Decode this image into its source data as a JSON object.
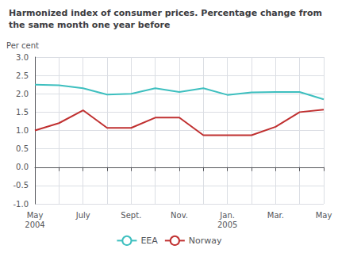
{
  "chart_data": {
    "type": "line",
    "title": "Harmonized index of consumer prices. Percentage change from\nthe same month one year before",
    "y_label": "Per cent",
    "categories": [
      "May\n2004",
      null,
      "July",
      null,
      "Sept.",
      null,
      "Nov.",
      null,
      "Jan.\n2005",
      null,
      "Mar.",
      null,
      "May"
    ],
    "series": [
      {
        "name": "EEA",
        "color": "#3dbfbf",
        "values": [
          2.25,
          2.23,
          2.15,
          1.98,
          2.0,
          2.15,
          2.05,
          2.15,
          1.97,
          2.04,
          2.05,
          2.05,
          1.85
        ]
      },
      {
        "name": "Norway",
        "color": "#c03030",
        "values": [
          1.0,
          1.2,
          1.55,
          1.07,
          1.07,
          1.35,
          1.35,
          0.87,
          0.87,
          0.87,
          1.1,
          1.5,
          1.57
        ]
      }
    ],
    "ylim": [
      -1.0,
      3.0
    ],
    "yticks": [
      {
        "value": -1.0,
        "label": "-1.0"
      },
      {
        "value": -0.5,
        "label": "-0.5"
      },
      {
        "value": 0.0,
        "label": "0.0"
      },
      {
        "value": 0.5,
        "label": "0.5"
      },
      {
        "value": 1.0,
        "label": "1.0"
      },
      {
        "value": 1.5,
        "label": "1.5"
      },
      {
        "value": 2.0,
        "label": "2.0"
      },
      {
        "value": 2.5,
        "label": "2.5"
      },
      {
        "value": 3.0,
        "label": "3.0"
      }
    ],
    "grid": true,
    "legend": "bottom"
  }
}
